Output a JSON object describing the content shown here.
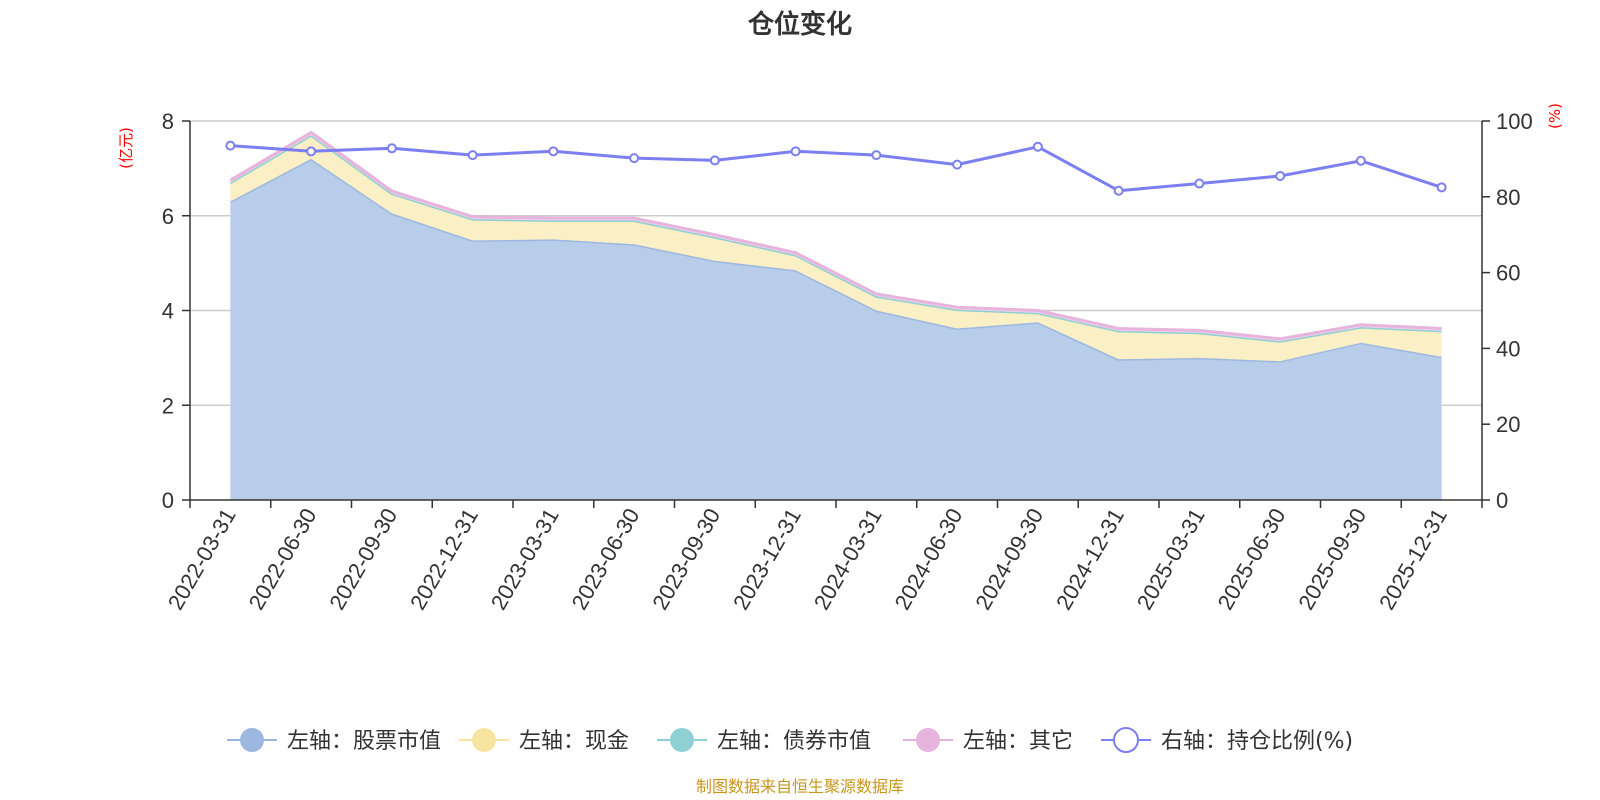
{
  "chart_data": {
    "type": "area",
    "title": "仓位变化",
    "left_axis_unit": "(亿元)",
    "right_axis_unit": "(%)",
    "categories": [
      "2022-03-31",
      "2022-06-30",
      "2022-09-30",
      "2022-12-31",
      "2023-03-31",
      "2023-06-30",
      "2023-09-30",
      "2023-12-31",
      "2024-03-31",
      "2024-06-30",
      "2024-09-30",
      "2024-12-31",
      "2025-03-31",
      "2025-06-30",
      "2025-09-30",
      "2025-12-31"
    ],
    "left_ylim": [
      0,
      8
    ],
    "left_ticks": [
      0,
      2,
      4,
      6,
      8
    ],
    "right_ylim": [
      0,
      100
    ],
    "right_ticks": [
      0,
      20,
      40,
      60,
      80,
      100
    ],
    "grid": true,
    "legend_position": "bottom",
    "series": [
      {
        "name": "左轴：股票市值",
        "axis": "left",
        "kind": "stacked-area",
        "color": "#9db8e0",
        "fill": "#b8cdea",
        "values": [
          6.3,
          7.2,
          6.05,
          5.48,
          5.5,
          5.4,
          5.05,
          4.85,
          4.0,
          3.62,
          3.75,
          2.97,
          3.0,
          2.93,
          3.32,
          3.02
        ]
      },
      {
        "name": "左轴：现金",
        "axis": "left",
        "kind": "stacked-area",
        "color": "#f7e4a0",
        "fill": "#faefc5",
        "values": [
          0.4,
          0.5,
          0.42,
          0.45,
          0.4,
          0.5,
          0.5,
          0.32,
          0.3,
          0.4,
          0.2,
          0.6,
          0.53,
          0.42,
          0.33,
          0.55
        ]
      },
      {
        "name": "左轴：债券市值",
        "axis": "left",
        "kind": "stacked-area",
        "color": "#8fd0d4",
        "fill": "#bfe6e8",
        "values": [
          0,
          0,
          0,
          0,
          0,
          0,
          0,
          0,
          0,
          0,
          0,
          0,
          0,
          0,
          0,
          0
        ]
      },
      {
        "name": "左轴：其它",
        "axis": "left",
        "kind": "stacked-area",
        "color": "#e6b4dc",
        "fill": "#f0d2ea",
        "values": [
          0.05,
          0.06,
          0.05,
          0.05,
          0.05,
          0.05,
          0.05,
          0.05,
          0.05,
          0.05,
          0.05,
          0.05,
          0.05,
          0.05,
          0.05,
          0.05
        ]
      },
      {
        "name": "右轴：持仓比例(%)",
        "axis": "right",
        "kind": "line",
        "color": "#7b7ff0",
        "fill": "#ffffff",
        "values": [
          93.5,
          92.0,
          92.8,
          91.0,
          92.0,
          90.2,
          89.6,
          92.0,
          91.0,
          88.5,
          93.2,
          81.6,
          83.5,
          85.5,
          89.5,
          82.5
        ]
      }
    ]
  },
  "source_note": "制图数据来自恒生聚源数据库"
}
